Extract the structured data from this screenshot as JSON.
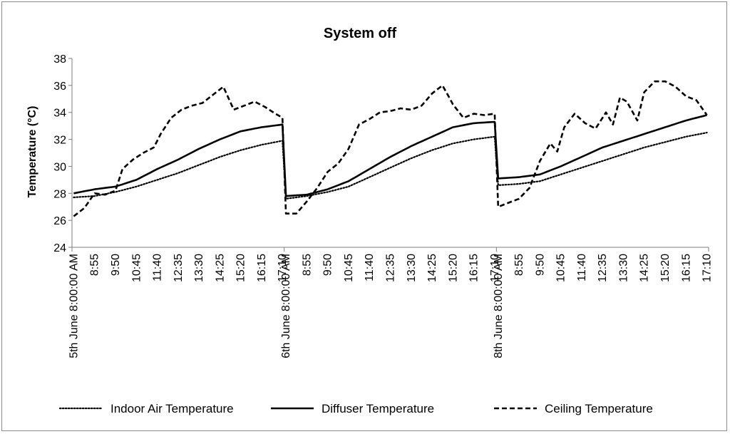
{
  "chart_data": {
    "type": "line",
    "title": "System off",
    "xlabel": "",
    "ylabel": "Temperature (°C)",
    "ylim": [
      24,
      38
    ],
    "yticks": [
      24,
      26,
      28,
      30,
      32,
      34,
      36,
      38
    ],
    "grid": false,
    "legend_position": "bottom",
    "segment_size": 61,
    "tick_step": 6,
    "x_tick_labels": [
      "5th June 8:00:00 AM",
      "8:55",
      "9:50",
      "10:45",
      "11:40",
      "12:35",
      "13:30",
      "14:25",
      "15:20",
      "16:15",
      "17:10",
      "6th June 8:00:00 AM",
      "8:55",
      "9:50",
      "10:45",
      "11:40",
      "12:35",
      "13:30",
      "14:25",
      "15:20",
      "16:15",
      "17:10",
      "8th June 8:00:00 AM",
      "8:55",
      "9:50",
      "10:45",
      "11:40",
      "12:35",
      "13:30",
      "14:25",
      "15:20",
      "16:15",
      "17:10"
    ],
    "series": [
      {
        "name": "Indoor Air Temperature",
        "style": "dotted",
        "knots": [
          [
            [
              0,
              27.7
            ],
            [
              6,
              27.8
            ],
            [
              12,
              28.1
            ],
            [
              18,
              28.5
            ],
            [
              24,
              29.0
            ],
            [
              30,
              29.5
            ],
            [
              36,
              30.1
            ],
            [
              42,
              30.7
            ],
            [
              48,
              31.2
            ],
            [
              54,
              31.6
            ],
            [
              60,
              31.9
            ]
          ],
          [
            [
              0,
              27.6
            ],
            [
              6,
              27.8
            ],
            [
              12,
              28.1
            ],
            [
              18,
              28.5
            ],
            [
              24,
              29.2
            ],
            [
              30,
              29.9
            ],
            [
              36,
              30.6
            ],
            [
              42,
              31.2
            ],
            [
              48,
              31.7
            ],
            [
              54,
              32.0
            ],
            [
              60,
              32.2
            ]
          ],
          [
            [
              0,
              28.6
            ],
            [
              6,
              28.7
            ],
            [
              12,
              28.9
            ],
            [
              18,
              29.4
            ],
            [
              24,
              29.9
            ],
            [
              30,
              30.4
            ],
            [
              36,
              30.9
            ],
            [
              42,
              31.4
            ],
            [
              48,
              31.8
            ],
            [
              54,
              32.2
            ],
            [
              60,
              32.5
            ]
          ]
        ]
      },
      {
        "name": "Diffuser Temperature",
        "style": "solid",
        "knots": [
          [
            [
              0,
              28.0
            ],
            [
              6,
              28.3
            ],
            [
              12,
              28.5
            ],
            [
              18,
              29.0
            ],
            [
              24,
              29.8
            ],
            [
              30,
              30.5
            ],
            [
              36,
              31.3
            ],
            [
              42,
              32.0
            ],
            [
              48,
              32.6
            ],
            [
              54,
              32.9
            ],
            [
              60,
              33.1
            ]
          ],
          [
            [
              0,
              27.8
            ],
            [
              6,
              27.9
            ],
            [
              12,
              28.3
            ],
            [
              18,
              28.9
            ],
            [
              24,
              29.8
            ],
            [
              30,
              30.7
            ],
            [
              36,
              31.5
            ],
            [
              42,
              32.2
            ],
            [
              48,
              32.9
            ],
            [
              54,
              33.2
            ],
            [
              60,
              33.3
            ]
          ],
          [
            [
              0,
              29.1
            ],
            [
              6,
              29.2
            ],
            [
              12,
              29.4
            ],
            [
              18,
              30.0
            ],
            [
              24,
              30.7
            ],
            [
              30,
              31.4
            ],
            [
              36,
              31.9
            ],
            [
              42,
              32.4
            ],
            [
              48,
              32.9
            ],
            [
              54,
              33.4
            ],
            [
              60,
              33.8
            ]
          ]
        ]
      },
      {
        "name": "Ceiling Temperature",
        "style": "dashed",
        "knots": [
          [
            [
              0,
              26.3
            ],
            [
              3,
              26.9
            ],
            [
              6,
              28.0
            ],
            [
              9,
              27.9
            ],
            [
              12,
              28.2
            ],
            [
              14,
              29.8
            ],
            [
              17,
              30.5
            ],
            [
              20,
              31.0
            ],
            [
              23,
              31.4
            ],
            [
              25,
              32.4
            ],
            [
              28,
              33.6
            ],
            [
              31,
              34.2
            ],
            [
              34,
              34.5
            ],
            [
              37,
              34.7
            ],
            [
              40,
              35.3
            ],
            [
              43,
              35.9
            ],
            [
              46,
              34.2
            ],
            [
              49,
              34.5
            ],
            [
              52,
              34.8
            ],
            [
              55,
              34.4
            ],
            [
              58,
              33.9
            ],
            [
              60,
              33.6
            ]
          ],
          [
            [
              0,
              26.5
            ],
            [
              3,
              26.5
            ],
            [
              6,
              27.4
            ],
            [
              9,
              28.4
            ],
            [
              12,
              29.6
            ],
            [
              15,
              30.2
            ],
            [
              18,
              31.3
            ],
            [
              21,
              33.1
            ],
            [
              24,
              33.5
            ],
            [
              27,
              34.0
            ],
            [
              30,
              34.1
            ],
            [
              33,
              34.3
            ],
            [
              36,
              34.2
            ],
            [
              39,
              34.5
            ],
            [
              42,
              35.4
            ],
            [
              45,
              36.0
            ],
            [
              48,
              34.6
            ],
            [
              51,
              33.6
            ],
            [
              54,
              33.9
            ],
            [
              57,
              33.8
            ],
            [
              60,
              33.9
            ]
          ],
          [
            [
              0,
              27.0
            ],
            [
              3,
              27.3
            ],
            [
              6,
              27.6
            ],
            [
              9,
              28.4
            ],
            [
              12,
              30.4
            ],
            [
              15,
              31.7
            ],
            [
              17,
              31.1
            ],
            [
              19,
              32.9
            ],
            [
              22,
              33.9
            ],
            [
              25,
              33.2
            ],
            [
              28,
              32.8
            ],
            [
              31,
              34.0
            ],
            [
              33,
              33.1
            ],
            [
              35,
              35.1
            ],
            [
              37,
              34.8
            ],
            [
              40,
              33.4
            ],
            [
              42,
              35.5
            ],
            [
              45,
              36.3
            ],
            [
              48,
              36.3
            ],
            [
              51,
              35.9
            ],
            [
              54,
              35.2
            ],
            [
              57,
              34.9
            ],
            [
              60,
              33.8
            ]
          ]
        ]
      }
    ]
  }
}
